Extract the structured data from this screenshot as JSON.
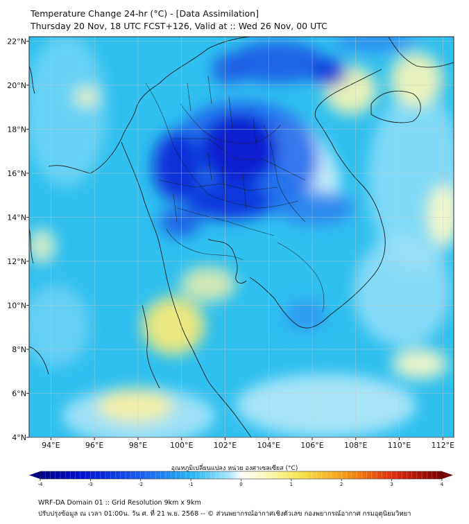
{
  "header": {
    "title": "Temperature Change 24-hr (°C) - [Data Assimilation]",
    "subtitle": "Thursday 20 Nov, 18 UTC FCST+126, Valid at :: Wed 26 Nov, 00 UTC"
  },
  "map": {
    "lon_range": [
      93,
      112.5
    ],
    "lat_range": [
      4,
      22.2
    ],
    "lon_ticks": [
      {
        "v": 94,
        "label": "94°E"
      },
      {
        "v": 96,
        "label": "96°E"
      },
      {
        "v": 98,
        "label": "98°E"
      },
      {
        "v": 100,
        "label": "100°E"
      },
      {
        "v": 102,
        "label": "102°E"
      },
      {
        "v": 104,
        "label": "104°E"
      },
      {
        "v": 106,
        "label": "106°E"
      },
      {
        "v": 108,
        "label": "108°E"
      },
      {
        "v": 110,
        "label": "110°E"
      },
      {
        "v": 112,
        "label": "112°E"
      }
    ],
    "lat_ticks": [
      {
        "v": 22,
        "label": "22°N"
      },
      {
        "v": 20,
        "label": "20°N"
      },
      {
        "v": 18,
        "label": "18°N"
      },
      {
        "v": 16,
        "label": "16°N"
      },
      {
        "v": 14,
        "label": "14°N"
      },
      {
        "v": 12,
        "label": "12°N"
      },
      {
        "v": 10,
        "label": "10°N"
      },
      {
        "v": 8,
        "label": "8°N"
      },
      {
        "v": 6,
        "label": "6°N"
      },
      {
        "v": 4,
        "label": "4°N"
      }
    ]
  },
  "colorbar": {
    "title": "อุณหภูมิเปลี่ยนแปลง หน่วย องศาเซลเซียส (°C)",
    "min": -4,
    "max": 4,
    "ticks": [
      {
        "v": -4,
        "label": "-4"
      },
      {
        "v": -3,
        "label": "-3"
      },
      {
        "v": -2,
        "label": "-2"
      },
      {
        "v": -1,
        "label": "-1"
      },
      {
        "v": 0,
        "label": "0"
      },
      {
        "v": 1,
        "label": "1"
      },
      {
        "v": 2,
        "label": "2"
      },
      {
        "v": 3,
        "label": "3"
      },
      {
        "v": 4,
        "label": "4"
      }
    ]
  },
  "footer": {
    "line1": "WRF-DA Domain 01 :: Grid Resolution 9km x 9km",
    "line2": "ปรับปรุงข้อมูล ณ เวลา 01:00น. วัน ศ. ที่ 21 พ.ย. 2568 -- © ส่วนพยากรณ์อากาศเชิงตัวเลข กองพยากรณ์อากาศ กรมอุตุนิยมวิทยา"
  },
  "colors": {
    "base_fill": "#2fc0f0",
    "cold_deep": "#0a1ad0",
    "cold_mid": "#1e64ec",
    "warm_light": "#fcf8b0",
    "warm": "#f7e86a",
    "coast": "#1a1a1a",
    "grid": "#c8c8c8"
  }
}
